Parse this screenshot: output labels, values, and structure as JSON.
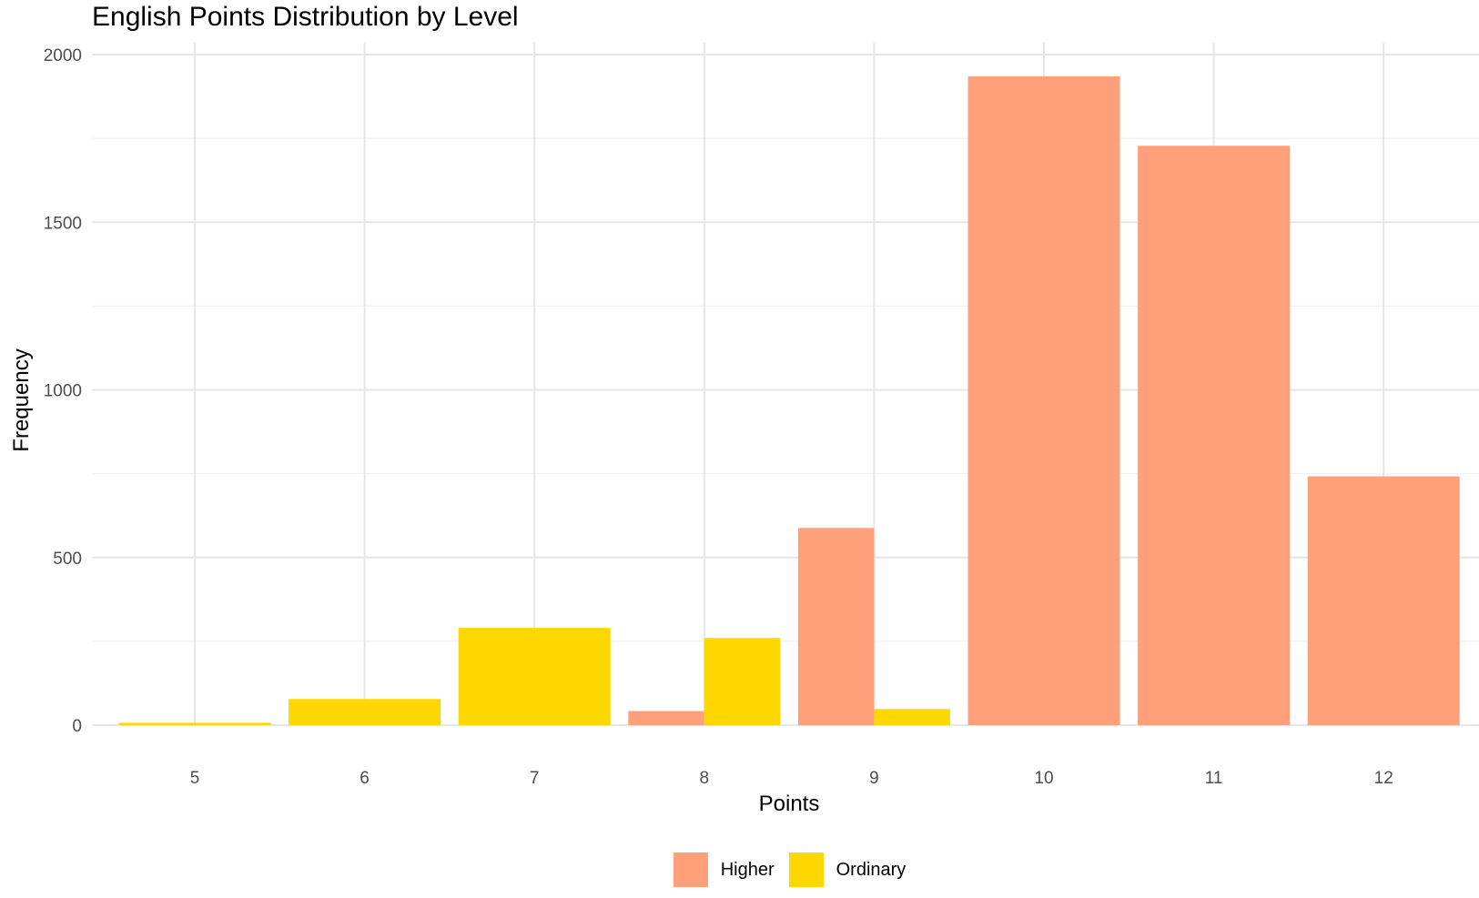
{
  "chart_data": {
    "type": "bar",
    "title": "English Points Distribution by Level",
    "xlabel": "Points",
    "ylabel": "Frequency",
    "categories": [
      "5",
      "6",
      "7",
      "8",
      "9",
      "10",
      "11",
      "12"
    ],
    "series": [
      {
        "name": "Higher",
        "color": "#FFA07A",
        "values": [
          0,
          0,
          0,
          42,
          588,
          1935,
          1728,
          742
        ]
      },
      {
        "name": "Ordinary",
        "color": "#FFD700",
        "values": [
          7,
          78,
          290,
          260,
          48,
          0,
          0,
          0
        ]
      }
    ],
    "ylim": [
      0,
      2000
    ],
    "yticks": [
      "0",
      "500",
      "1000",
      "1500",
      "2000"
    ],
    "grid": true,
    "legend_position": "bottom"
  }
}
